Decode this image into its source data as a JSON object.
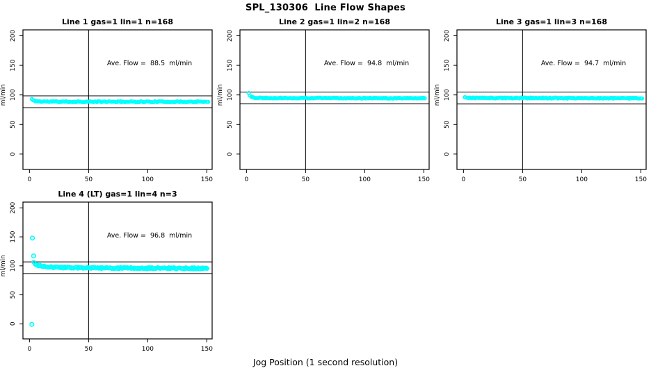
{
  "page": {
    "title": "SPL_130306  Line Flow Shapes",
    "xlabel": "Jog Position (1 second resolution)",
    "background": "#ffffff"
  },
  "chart_data": {
    "type": "scatter",
    "title": "SPL_130306  Line Flow Shapes",
    "xlabel": "Jog Position (1 second resolution)",
    "ylabel": "ml/min",
    "point_color": "#00ffff",
    "axis_color": "#000000",
    "grid": false,
    "legend": "none",
    "x_ticks": [
      0,
      50,
      100,
      150
    ],
    "y_ticks": [
      0,
      50,
      100,
      150,
      200
    ],
    "xlim": [
      -5.5,
      154.5
    ],
    "ylim": [
      -26,
      210
    ],
    "panels": [
      {
        "title": "Line 1 gas=1 lin=1 n=168",
        "annotation": "Ave. Flow =  88.5  ml/min",
        "ave_flow": 88.5,
        "n": 168,
        "ref_lines": [
          98.5,
          78.5
        ],
        "vline_x": 50,
        "trend_points": [
          [
            2,
            93
          ],
          [
            3,
            91
          ],
          [
            4,
            90
          ],
          [
            6,
            89.3
          ],
          [
            10,
            88.8
          ],
          [
            30,
            88.5
          ],
          [
            151,
            88.3
          ]
        ],
        "outliers": [],
        "x_start": 2,
        "x_end": 151,
        "x_step": 1,
        "jitter_x": 0.2,
        "jitter_y": 0.8,
        "point_r": 2.2,
        "seed": 11
      },
      {
        "title": "Line 2 gas=1 lin=2 n=168",
        "annotation": "Ave. Flow =  94.8  ml/min",
        "ave_flow": 94.8,
        "n": 168,
        "ref_lines": [
          104.8,
          84.8
        ],
        "vline_x": 50,
        "trend_points": [
          [
            2,
            103
          ],
          [
            3,
            99.5
          ],
          [
            4,
            97
          ],
          [
            6,
            95.6
          ],
          [
            10,
            95
          ],
          [
            30,
            94.8
          ],
          [
            151,
            94.5
          ]
        ],
        "outliers": [],
        "x_start": 2,
        "x_end": 151,
        "x_step": 1,
        "jitter_x": 0.2,
        "jitter_y": 0.7,
        "point_r": 2.2,
        "seed": 22
      },
      {
        "title": "Line 3 gas=1 lin=3 n=168",
        "annotation": "Ave. Flow =  94.7  ml/min",
        "ave_flow": 94.7,
        "n": 168,
        "ref_lines": [
          104.7,
          84.7
        ],
        "vline_x": 50,
        "trend_points": [
          [
            1,
            96.2
          ],
          [
            3,
            95.2
          ],
          [
            8,
            94.9
          ],
          [
            80,
            94.7
          ],
          [
            151,
            94.4
          ]
        ],
        "outliers": [],
        "x_start": 1,
        "x_end": 151,
        "x_step": 1,
        "jitter_x": 0.2,
        "jitter_y": 0.8,
        "point_r": 2.2,
        "seed": 33
      },
      {
        "title": "Line 4 (LT) gas=1 lin=4 n=3",
        "annotation": "Ave. Flow =  96.8  ml/min",
        "ave_flow": 96.8,
        "n": 3,
        "ref_lines": [
          106.8,
          86.8
        ],
        "vline_x": 50,
        "trend_points": [
          [
            4,
            105.5
          ],
          [
            5,
            103
          ],
          [
            7,
            100.8
          ],
          [
            10,
            99.3
          ],
          [
            15,
            98.2
          ],
          [
            25,
            97.3
          ],
          [
            40,
            96.7
          ],
          [
            70,
            96.2
          ],
          [
            110,
            95.9
          ],
          [
            151,
            95.6
          ]
        ],
        "outliers": [
          [
            2,
            -1
          ],
          [
            2.5,
            148
          ],
          [
            3.5,
            117
          ]
        ],
        "x_start": 4,
        "x_end": 151,
        "x_step": 0.8,
        "jitter_x": 0.4,
        "jitter_y": 1.2,
        "point_r": 2.6,
        "seed": 44
      }
    ]
  }
}
